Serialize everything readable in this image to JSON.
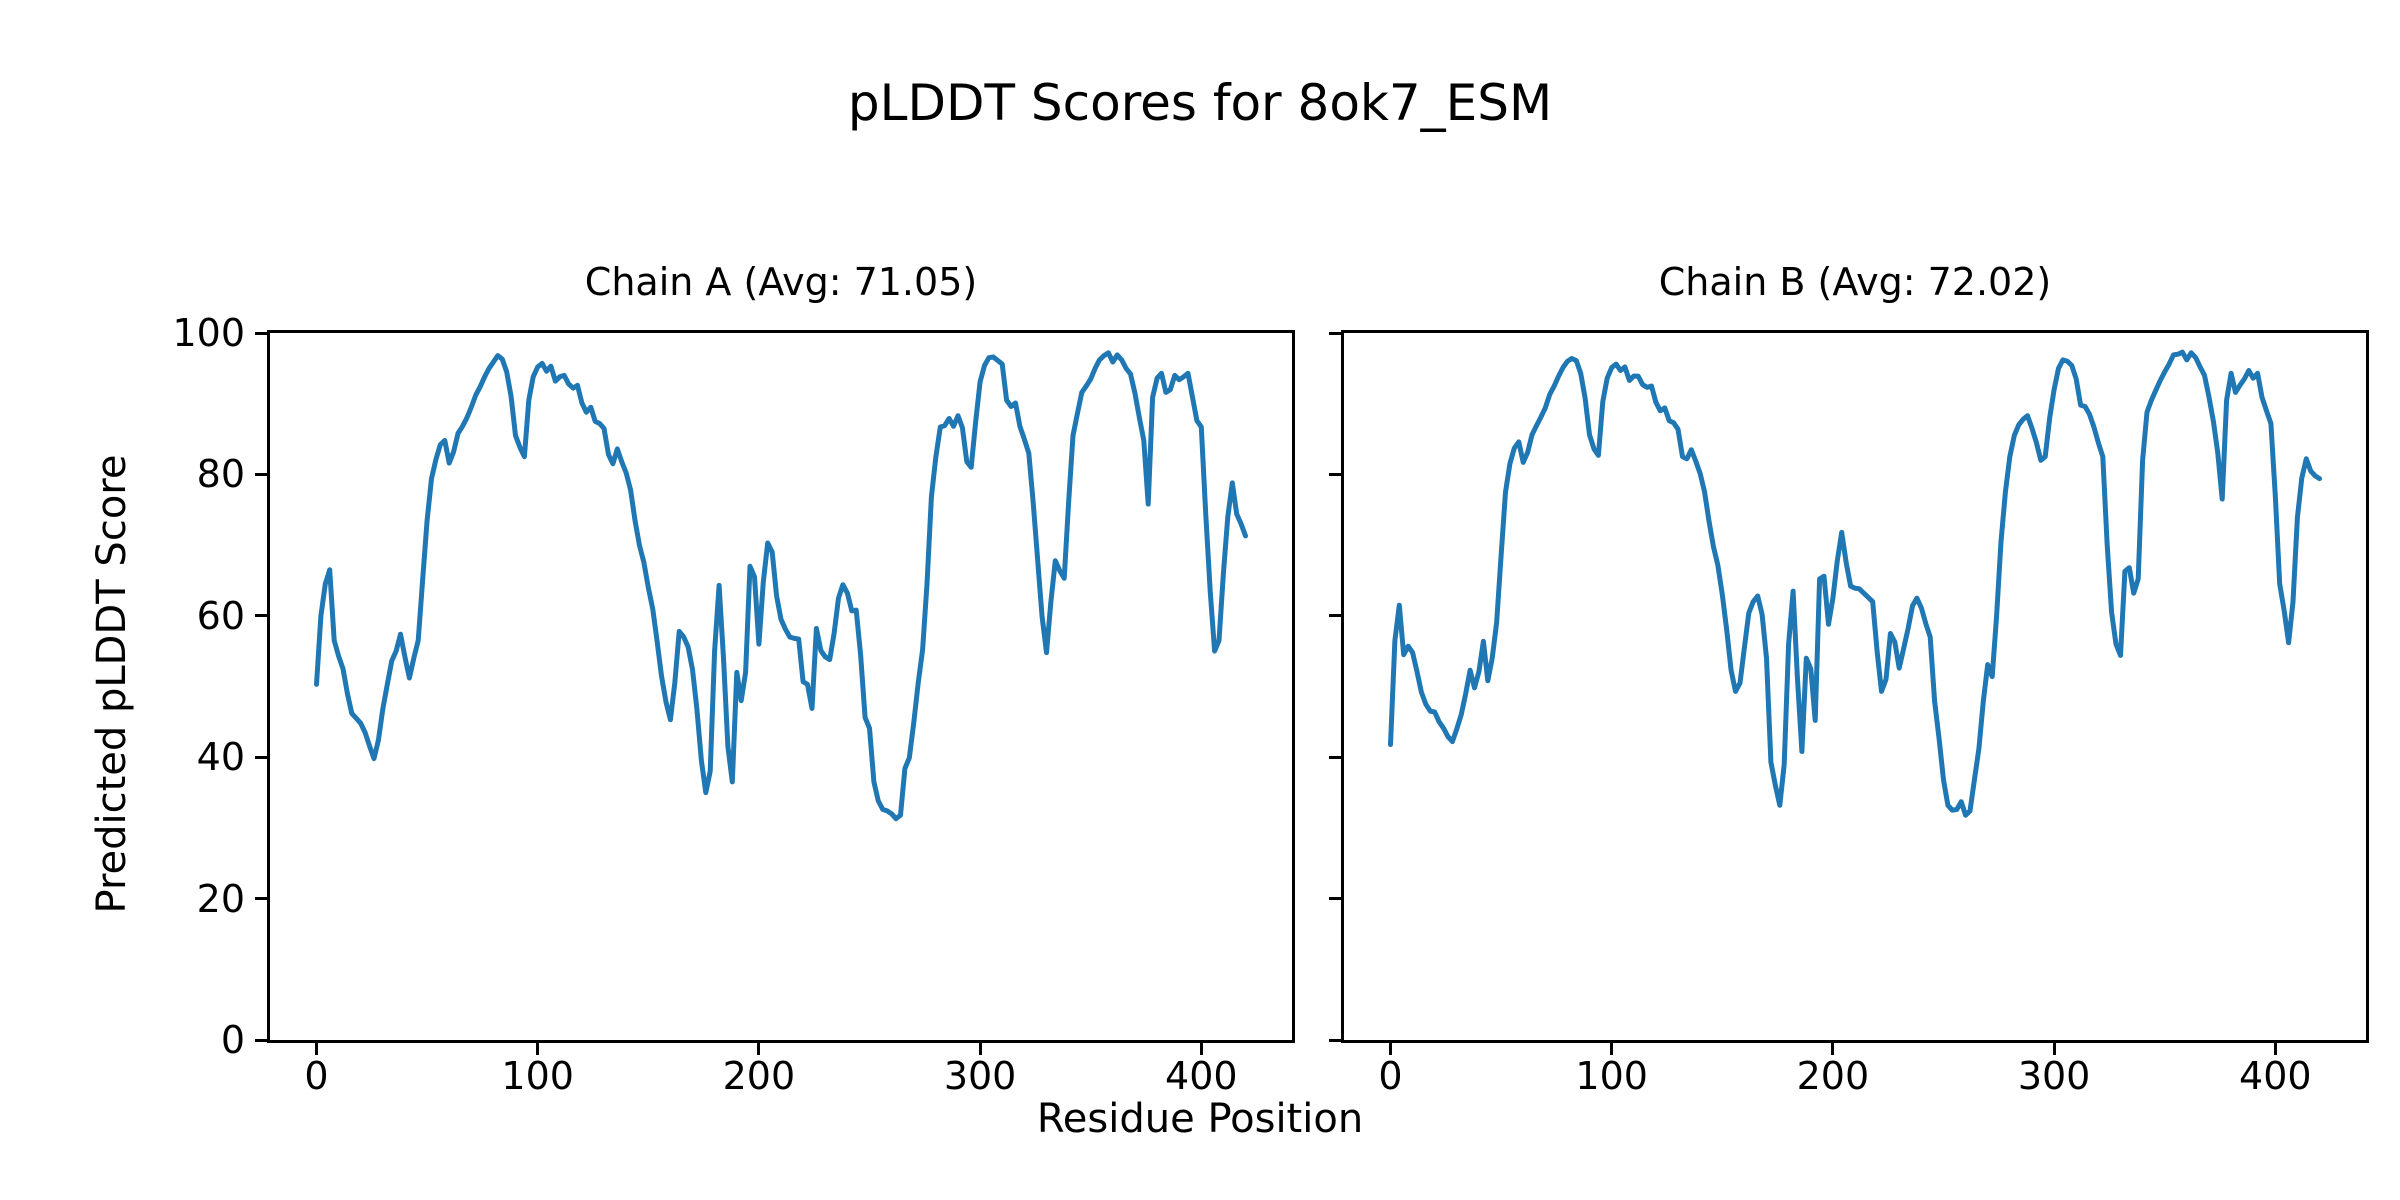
{
  "figure": {
    "title": "pLDDT Scores for 8ok7_ESM",
    "xlabel": "Residue Position",
    "ylabel": "Predicted pLDDT Score",
    "background_color": "#ffffff",
    "text_color": "#000000",
    "line_color": "#1f77b4"
  },
  "chart_data": [
    {
      "type": "line",
      "name": "chain-a",
      "title": "Chain A (Avg: 71.05)",
      "chain": "A",
      "avg_plddt": 71.05,
      "line_color": "#1f77b4",
      "xlabel": "Residue Position",
      "ylabel": "Predicted pLDDT Score",
      "xlim": [
        -21,
        441
      ],
      "ylim": [
        0,
        100
      ],
      "x_ticks": [
        0,
        100,
        200,
        300,
        400
      ],
      "y_ticks": [
        0,
        20,
        40,
        60,
        80,
        100
      ],
      "y_tick_labels_shown": true,
      "grid": false,
      "legend": false,
      "x_start": 0,
      "x_step": 2,
      "values": [
        50.3,
        60,
        64.5,
        66.5,
        56.5,
        54.3,
        52.5,
        49,
        46.2,
        45.5,
        44.8,
        43.5,
        41.6,
        39.8,
        42.4,
        46.8,
        50.2,
        53.6,
        55,
        57.4,
        54.2,
        51.2,
        54,
        56.5,
        65,
        73.5,
        79.4,
        82.1,
        84.2,
        84.8,
        81.6,
        83.2,
        85.8,
        86.8,
        88,
        89.5,
        91.2,
        92.4,
        93.8,
        95,
        95.9,
        96.8,
        96.3,
        94.5,
        91,
        85.5,
        83.8,
        82.5,
        90.5,
        93.8,
        95.2,
        95.7,
        94.6,
        95.3,
        93.2,
        93.8,
        94,
        92.8,
        92.2,
        92.6,
        90.1,
        88.8,
        89.5,
        87.5,
        87.2,
        86.5,
        82.8,
        81.5,
        83.6,
        81.8,
        80.2,
        77.8,
        73.5,
        70,
        67.6,
        64,
        61,
        56.4,
        51.5,
        47.8,
        45.3,
        50.5,
        57.8,
        57,
        55.6,
        52.4,
        46.8,
        39.5,
        35,
        38,
        55,
        64.3,
        54,
        41.5,
        36.5,
        52,
        48,
        52,
        67,
        65.5,
        56,
        64.8,
        70.3,
        69,
        62.8,
        59.5,
        58.1,
        57,
        56.8,
        56.7,
        50.7,
        50.3,
        46.9,
        58.2,
        55.1,
        54.2,
        53.8,
        57.5,
        62.5,
        64.4,
        63.2,
        60.7,
        60.8,
        54.5,
        45.6,
        44.1,
        36.5,
        33.8,
        32.6,
        32.4,
        32,
        31.3,
        31.8,
        38.4,
        39.9,
        44.8,
        50.5,
        55.2,
        64.5,
        76.8,
        82.4,
        86.7,
        86.9,
        87.9,
        86.8,
        88.3,
        86.6,
        81.8,
        81,
        87.5,
        93.1,
        95.4,
        96.5,
        96.6,
        96.1,
        95.6,
        90.5,
        89.6,
        90.1,
        86.8,
        85,
        83,
        76,
        68,
        60,
        54.8,
        62,
        67.8,
        66.4,
        65.3,
        76,
        85.5,
        88.6,
        91.6,
        92.5,
        93.5,
        95,
        96.2,
        96.8,
        97.2,
        95.9,
        96.9,
        96.2,
        95,
        94.2,
        91.5,
        88,
        84.8,
        75.8,
        90.9,
        93.6,
        94.3,
        91.6,
        92,
        94,
        93.4,
        93.8,
        94.3,
        90.9,
        87.6,
        86.7,
        74.5,
        63.5,
        55,
        56.5,
        66,
        74,
        78.8,
        74.4,
        73,
        71.3
      ]
    },
    {
      "type": "line",
      "name": "chain-b",
      "title": "Chain B (Avg: 72.02)",
      "chain": "B",
      "avg_plddt": 72.02,
      "line_color": "#1f77b4",
      "xlabel": "Residue Position",
      "ylabel": "Predicted pLDDT Score",
      "xlim": [
        -21,
        441
      ],
      "ylim": [
        0,
        100
      ],
      "x_ticks": [
        0,
        100,
        200,
        300,
        400
      ],
      "y_ticks": [
        0,
        20,
        40,
        60,
        80,
        100
      ],
      "y_tick_labels_shown": false,
      "grid": false,
      "legend": false,
      "x_start": 0,
      "x_step": 2,
      "values": [
        41.8,
        56.5,
        61.5,
        54.5,
        55.7,
        54.8,
        52.1,
        49.2,
        47.5,
        46.5,
        46.4,
        45,
        44.1,
        42.9,
        42.2,
        44,
        46,
        49,
        52.3,
        49.8,
        52.1,
        56.4,
        50.8,
        54,
        59,
        68.5,
        77.5,
        81.5,
        83.7,
        84.6,
        81.7,
        83.1,
        85.6,
        86.9,
        88.1,
        89.4,
        91.3,
        92.5,
        93.9,
        95.1,
        96,
        96.4,
        96.1,
        94.3,
        90.8,
        85.6,
        83.6,
        82.7,
        90.3,
        93.6,
        95.1,
        95.6,
        94.7,
        95.2,
        93.3,
        93.9,
        93.9,
        92.7,
        92.3,
        92.5,
        90.2,
        89,
        89.4,
        87.6,
        87.3,
        86.4,
        82.5,
        82.2,
        83.5,
        81.9,
        80.1,
        77.5,
        73.4,
        69.8,
        67.2,
        63,
        58,
        52.3,
        49.3,
        50.5,
        55.5,
        60.4,
        62,
        62.8,
        60.2,
        54,
        39.3,
        36,
        33.2,
        39,
        56,
        63.5,
        51,
        40.8,
        54,
        52.5,
        45.2,
        65.2,
        65.6,
        58.8,
        62.5,
        67.8,
        71.8,
        67.5,
        64.2,
        63.9,
        63.8,
        63.2,
        62.6,
        62,
        55,
        49.3,
        51,
        57.5,
        56.3,
        52.6,
        55.4,
        58.2,
        61.4,
        62.5,
        61.1,
        58.9,
        57,
        47.9,
        42.6,
        36.8,
        33.2,
        32.5,
        32.6,
        33.7,
        31.8,
        32.4,
        36.9,
        41.2,
        47.9,
        53.1,
        51.4,
        60,
        70.5,
        77.5,
        82.5,
        85.5,
        87,
        87.8,
        88.3,
        86.5,
        84.5,
        82,
        82.5,
        88,
        92,
        95,
        96.2,
        96,
        95.4,
        93.5,
        89.8,
        89.6,
        88.5,
        86.7,
        84.5,
        82.5,
        70,
        60.5,
        56,
        54.4,
        66.3,
        66.8,
        63.2,
        65.2,
        82,
        88.8,
        90.5,
        91.9,
        93.3,
        94.5,
        95.6,
        96.9,
        97,
        97.3,
        96.2,
        97.2,
        96.5,
        95.2,
        94,
        91,
        87.5,
        83,
        76.5,
        90.5,
        94.3,
        91.6,
        92.6,
        93.5,
        94.7,
        93.6,
        94.3,
        90.9,
        89,
        87.2,
        77,
        64.5,
        60.7,
        56.2,
        62,
        73.9,
        79.5,
        82.2,
        80.5,
        79.8,
        79.4
      ]
    }
  ]
}
